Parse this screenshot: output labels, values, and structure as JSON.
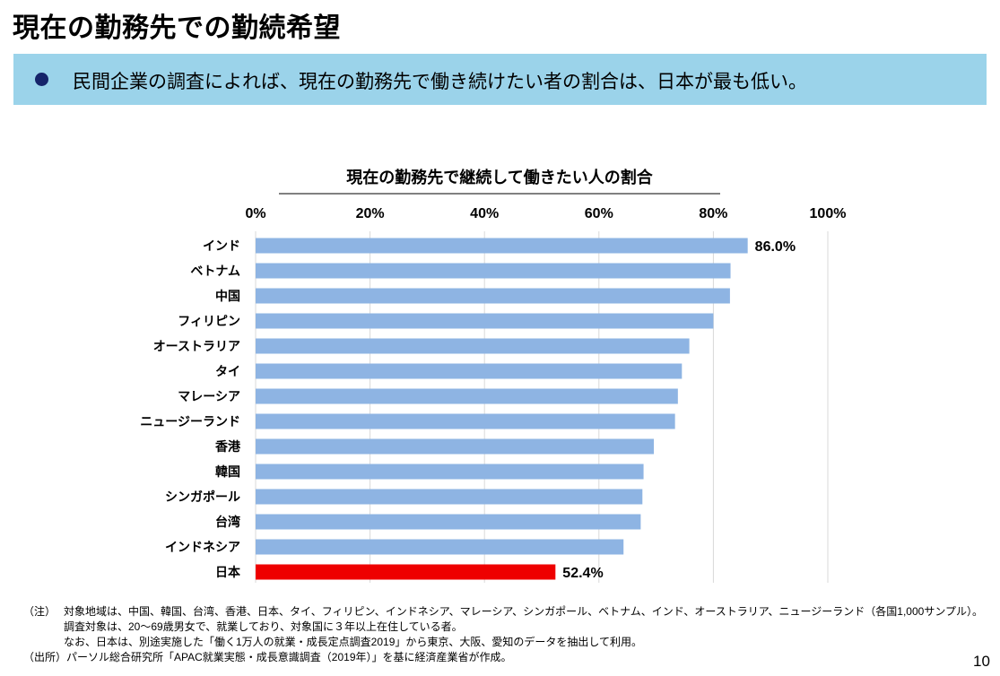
{
  "page_title": "現在の勤務先での勤続希望",
  "banner": {
    "text": "民間企業の調査によれば、現在の勤務先で働き続けたい者の割合は、日本が最も低い。"
  },
  "chart_data": {
    "type": "bar",
    "orientation": "horizontal",
    "title": "現在の勤務先で継続して働きたい人の割合",
    "x_axis_position": "top",
    "xlim": [
      0,
      100
    ],
    "ticks": [
      0,
      20,
      40,
      60,
      80,
      100
    ],
    "tick_labels": [
      "0%",
      "20%",
      "40%",
      "60%",
      "80%",
      "100%"
    ],
    "grid": true,
    "categories": [
      "インド",
      "ベトナム",
      "中国",
      "フィリピン",
      "オーストラリア",
      "タイ",
      "マレーシア",
      "ニュージーランド",
      "香港",
      "韓国",
      "シンガポール",
      "台湾",
      "インドネシア",
      "日本"
    ],
    "values": [
      86.0,
      83.0,
      82.9,
      80.0,
      75.8,
      74.5,
      73.8,
      73.3,
      69.6,
      67.8,
      67.6,
      67.3,
      64.3,
      52.4
    ],
    "data_labels": [
      {
        "category": "インド",
        "text": "86.0%"
      },
      {
        "category": "日本",
        "text": "52.4%"
      }
    ],
    "bar_color": "#8eb4e3",
    "highlight": {
      "category": "日本",
      "color": "#ee0000"
    }
  },
  "notes": {
    "label": "（注）",
    "lines": [
      "対象地域は、中国、韓国、台湾、香港、日本、タイ、フィリピン、インドネシア、マレーシア、シンガポール、ベトナム、インド、オーストラリア、ニュージーランド（各国1,000サンプル）。",
      "調査対象は、20～69歳男女で、就業しており、対象国に３年以上在住している者。",
      "なお、日本は、別途実施した「働く1万人の就業・成長定点調査2019」から東京、大阪、愛知のデータを抽出して利用。"
    ]
  },
  "source": {
    "label": "（出所）",
    "text": "パーソル総合研究所「APAC就業実態・成長意識調査（2019年）」を基に経済産業省が作成。"
  },
  "page_number": "10"
}
